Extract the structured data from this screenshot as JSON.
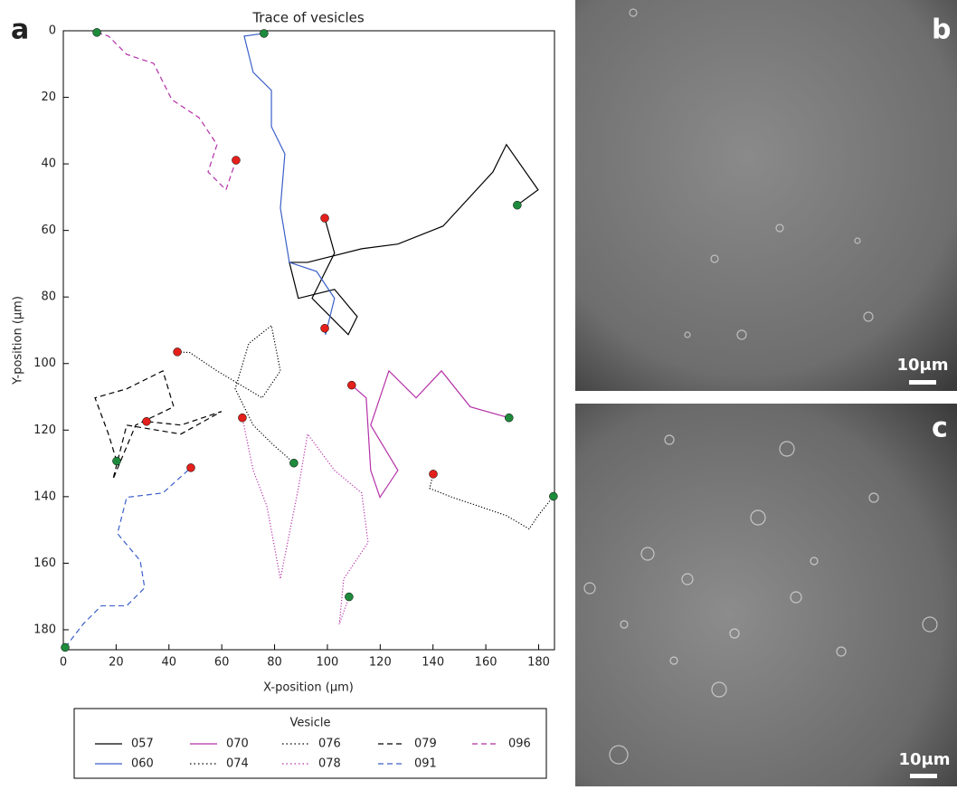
{
  "chart_data": {
    "type": "line",
    "title": "Trace of vesicles",
    "x_label": "X-position (μm)",
    "y_label": "Y-position (μm)",
    "xlim": [
      0,
      186
    ],
    "ylim": [
      186,
      0
    ],
    "xticks": [
      0,
      20,
      40,
      60,
      80,
      100,
      120,
      140,
      160,
      180
    ],
    "yticks": [
      0,
      20,
      40,
      60,
      80,
      100,
      120,
      140,
      160,
      180
    ],
    "start_color": "#1e8a3c",
    "end_color": "#e3201b",
    "legend_title": "Vesicle",
    "legend_position": "below",
    "series": [
      {
        "name": "057",
        "color": "#000000",
        "linestyle": "solid",
        "x": [
          171.9,
          179.8,
          167.8,
          162.7,
          143.8,
          126.7,
          113.0,
          92.5,
          85.6,
          89.0,
          102.7,
          111.3,
          107.9,
          94.2,
          102.7,
          99.0
        ],
        "y": [
          52.4,
          47.8,
          34.2,
          42.4,
          58.7,
          64.1,
          65.5,
          69.6,
          69.6,
          80.4,
          77.7,
          85.9,
          91.3,
          80.4,
          66.8,
          56.3
        ]
      },
      {
        "name": "060",
        "color": "#3a5fc8",
        "linestyle": "solid",
        "x": [
          76.0,
          68.5,
          71.9,
          78.8,
          78.8,
          83.9,
          82.2,
          85.6,
          95.9,
          102.7,
          99.3,
          99.0
        ],
        "y": [
          0.8,
          1.6,
          12.5,
          17.9,
          28.8,
          37.0,
          53.3,
          69.6,
          72.3,
          80.4,
          91.3,
          89.4
        ]
      },
      {
        "name": "070",
        "color": "#b530a8",
        "linestyle": "solid",
        "x": [
          168.8,
          154.1,
          143.2,
          133.6,
          123.3,
          116.4,
          126.7,
          119.9,
          116.4,
          114.7,
          109.2
        ],
        "y": [
          116.3,
          113.0,
          102.2,
          110.3,
          102.2,
          118.5,
          132.1,
          140.2,
          132.1,
          110.3,
          106.5
        ]
      },
      {
        "name": "074",
        "color": "#000000",
        "linestyle": "dotted",
        "x": [
          87.3,
          78.8,
          71.9,
          65.1,
          70.2,
          78.8,
          82.2,
          75.3,
          58.2,
          47.9,
          43.2
        ],
        "y": [
          129.9,
          123.9,
          118.5,
          107.6,
          94.0,
          88.6,
          102.2,
          110.3,
          102.2,
          96.7,
          96.5
        ]
      },
      {
        "name": "076",
        "color": "#000000",
        "linestyle": "dotted",
        "x": [
          185.6,
          179.8,
          176.4,
          167.8,
          157.5,
          147.3,
          138.7,
          140.1
        ],
        "y": [
          139.9,
          145.7,
          149.7,
          145.7,
          142.9,
          140.2,
          137.5,
          133.2
        ]
      },
      {
        "name": "078",
        "color": "#b530a8",
        "linestyle": "dotted",
        "x": [
          108.2,
          104.5,
          106.2,
          115.4,
          113.0,
          102.7,
          92.5,
          89.0,
          82.2,
          77.1,
          71.9,
          67.8
        ],
        "y": [
          170.1,
          178.3,
          164.7,
          153.8,
          138.9,
          132.1,
          121.2,
          137.5,
          164.7,
          142.9,
          132.1,
          116.3
        ]
      },
      {
        "name": "079",
        "color": "#000000",
        "linestyle": "dashed",
        "x": [
          20.2,
          17.1,
          12.0,
          24.0,
          37.7,
          41.8,
          27.4,
          18.8,
          24.0,
          44.5,
          59.9,
          44.5,
          31.5
        ],
        "y": [
          129.3,
          121.2,
          110.3,
          107.6,
          102.2,
          113.0,
          118.5,
          134.8,
          118.5,
          121.2,
          114.4,
          118.5,
          117.4
        ]
      },
      {
        "name": "091",
        "color": "#3a5fc8",
        "linestyle": "dashed",
        "x": [
          0.7,
          7.5,
          14.4,
          24.0,
          30.8,
          29.1,
          20.5,
          24.0,
          37.7,
          48.3
        ],
        "y": [
          185.3,
          178.3,
          172.8,
          172.8,
          167.4,
          159.2,
          151.1,
          140.2,
          138.9,
          131.3
        ]
      },
      {
        "name": "096",
        "color": "#b530a8",
        "linestyle": "dashed",
        "x": [
          12.7,
          17.1,
          24.0,
          34.2,
          41.1,
          51.4,
          58.2,
          54.8,
          61.6,
          65.4
        ],
        "y": [
          0.5,
          1.6,
          7.1,
          9.8,
          20.7,
          26.1,
          34.2,
          42.4,
          47.8,
          38.9
        ]
      }
    ]
  },
  "panel_labels": [
    "a",
    "b",
    "c"
  ],
  "scale_bars": [
    "10μm",
    "10μm"
  ]
}
